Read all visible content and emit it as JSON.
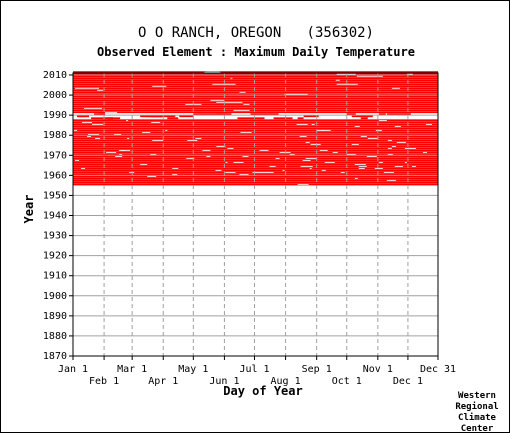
{
  "chart_data": {
    "type": "heatmap",
    "title": "O O RANCH, OREGON   (356302)",
    "subtitle": "Observed Element : Maximum Daily Temperature",
    "xlabel": "Day of Year",
    "ylabel": "Year",
    "x_tick_labels_upper": [
      "Jan 1",
      "Mar 1",
      "May 1",
      "Jul 1",
      "Sep 1",
      "Nov 1",
      "Dec 31"
    ],
    "x_tick_labels_lower": [
      "Feb 1",
      "Apr 1",
      "Jun 1",
      "Aug 1",
      "Oct 1",
      "Dec 1"
    ],
    "y_ticks": [
      1870,
      1880,
      1890,
      1900,
      1910,
      1920,
      1930,
      1940,
      1950,
      1960,
      1970,
      1980,
      1990,
      2000,
      2010
    ],
    "ylim": [
      1870,
      2011
    ],
    "xlim": [
      1,
      365
    ],
    "grid": true,
    "record_color": "#ff0000",
    "mostly_complete_years": [
      [
        1955,
        1987
      ],
      [
        1991,
        2011
      ]
    ],
    "sparse_years": [
      1988,
      1989,
      1990
    ]
  },
  "credit": [
    "Western",
    "Regional",
    "Climate",
    "Center"
  ]
}
